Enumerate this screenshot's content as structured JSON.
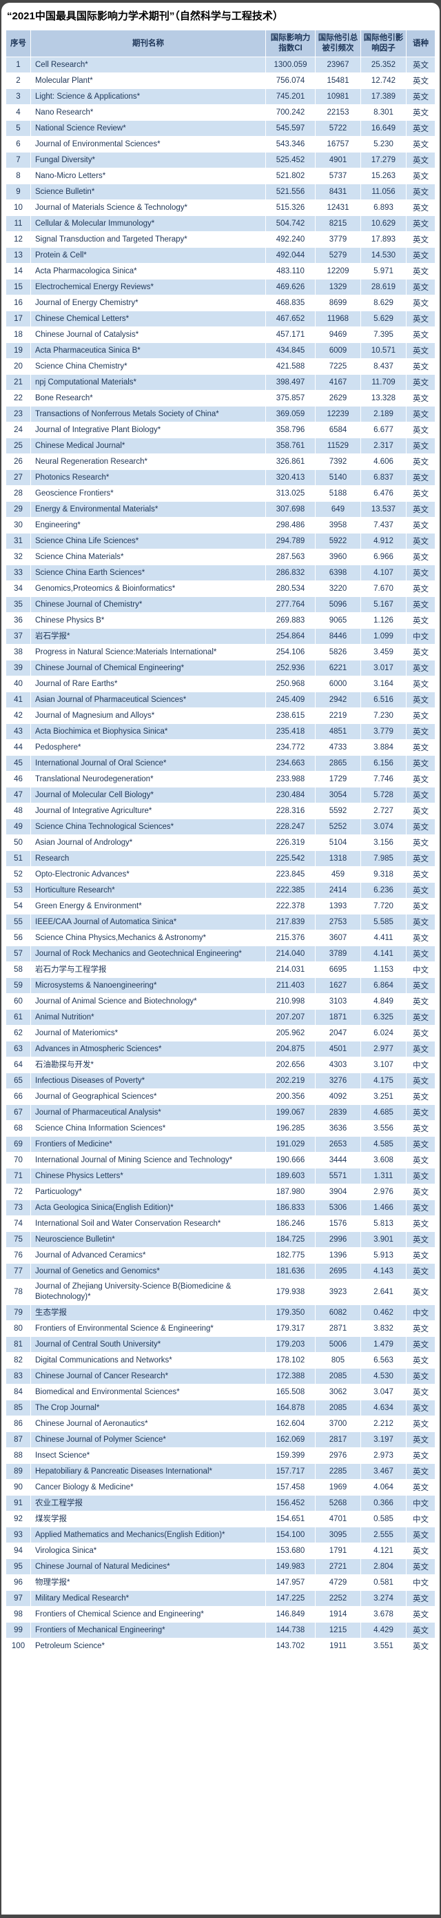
{
  "theme": {
    "page_bg": "#474747",
    "card_bg": "#ffffff",
    "header_bg": "#b8cce4",
    "row_alt_bg": "#cfe0f1",
    "row_bg": "#ffffff",
    "text_color": "#1d3557",
    "title_color": "#000000"
  },
  "chart_data": {
    "type": "table",
    "title": "“2021中国最具国际影响力学术期刊”（自然科学与工程技术）",
    "columns": [
      "序号",
      "期刊名称",
      "国际影响力指数CI",
      "国际他引总被引频次",
      "国际他引影响因子",
      "语种"
    ],
    "rows": [
      {
        "no": 1,
        "name": "Cell Research*",
        "ci": "1300.059",
        "cites": "23967",
        "impact": "25.352",
        "lang": "英文"
      },
      {
        "no": 2,
        "name": "Molecular Plant*",
        "ci": "756.074",
        "cites": "15481",
        "impact": "12.742",
        "lang": "英文"
      },
      {
        "no": 3,
        "name": "Light: Science & Applications*",
        "ci": "745.201",
        "cites": "10981",
        "impact": "17.389",
        "lang": "英文"
      },
      {
        "no": 4,
        "name": "Nano Research*",
        "ci": "700.242",
        "cites": "22153",
        "impact": "8.301",
        "lang": "英文"
      },
      {
        "no": 5,
        "name": "National Science Review*",
        "ci": "545.597",
        "cites": "5722",
        "impact": "16.649",
        "lang": "英文"
      },
      {
        "no": 6,
        "name": "Journal of Environmental Sciences*",
        "ci": "543.346",
        "cites": "16757",
        "impact": "5.230",
        "lang": "英文"
      },
      {
        "no": 7,
        "name": "Fungal Diversity*",
        "ci": "525.452",
        "cites": "4901",
        "impact": "17.279",
        "lang": "英文"
      },
      {
        "no": 8,
        "name": "Nano-Micro Letters*",
        "ci": "521.802",
        "cites": "5737",
        "impact": "15.263",
        "lang": "英文"
      },
      {
        "no": 9,
        "name": "Science Bulletin*",
        "ci": "521.556",
        "cites": "8431",
        "impact": "11.056",
        "lang": "英文"
      },
      {
        "no": 10,
        "name": "Journal of Materials Science & Technology*",
        "ci": "515.326",
        "cites": "12431",
        "impact": "6.893",
        "lang": "英文"
      },
      {
        "no": 11,
        "name": "Cellular & Molecular Immunology*",
        "ci": "504.742",
        "cites": "8215",
        "impact": "10.629",
        "lang": "英文"
      },
      {
        "no": 12,
        "name": "Signal Transduction and Targeted Therapy*",
        "ci": "492.240",
        "cites": "3779",
        "impact": "17.893",
        "lang": "英文"
      },
      {
        "no": 13,
        "name": "Protein & Cell*",
        "ci": "492.044",
        "cites": "5279",
        "impact": "14.530",
        "lang": "英文"
      },
      {
        "no": 14,
        "name": "Acta Pharmacologica Sinica*",
        "ci": "483.110",
        "cites": "12209",
        "impact": "5.971",
        "lang": "英文"
      },
      {
        "no": 15,
        "name": "Electrochemical Energy Reviews*",
        "ci": "469.626",
        "cites": "1329",
        "impact": "28.619",
        "lang": "英文"
      },
      {
        "no": 16,
        "name": "Journal of Energy Chemistry*",
        "ci": "468.835",
        "cites": "8699",
        "impact": "8.629",
        "lang": "英文"
      },
      {
        "no": 17,
        "name": "Chinese Chemical Letters*",
        "ci": "467.652",
        "cites": "11968",
        "impact": "5.629",
        "lang": "英文"
      },
      {
        "no": 18,
        "name": "Chinese Journal of Catalysis*",
        "ci": "457.171",
        "cites": "9469",
        "impact": "7.395",
        "lang": "英文"
      },
      {
        "no": 19,
        "name": "Acta Pharmaceutica Sinica B*",
        "ci": "434.845",
        "cites": "6009",
        "impact": "10.571",
        "lang": "英文"
      },
      {
        "no": 20,
        "name": "Science China Chemistry*",
        "ci": "421.588",
        "cites": "7225",
        "impact": "8.437",
        "lang": "英文"
      },
      {
        "no": 21,
        "name": "npj Computational Materials*",
        "ci": "398.497",
        "cites": "4167",
        "impact": "11.709",
        "lang": "英文"
      },
      {
        "no": 22,
        "name": "Bone Research*",
        "ci": "375.857",
        "cites": "2629",
        "impact": "13.328",
        "lang": "英文"
      },
      {
        "no": 23,
        "name": "Transactions of Nonferrous Metals Society of China*",
        "ci": "369.059",
        "cites": "12239",
        "impact": "2.189",
        "lang": "英文"
      },
      {
        "no": 24,
        "name": "Journal of Integrative Plant Biology*",
        "ci": "358.796",
        "cites": "6584",
        "impact": "6.677",
        "lang": "英文"
      },
      {
        "no": 25,
        "name": "Chinese Medical Journal*",
        "ci": "358.761",
        "cites": "11529",
        "impact": "2.317",
        "lang": "英文"
      },
      {
        "no": 26,
        "name": "Neural Regeneration Research*",
        "ci": "326.861",
        "cites": "7392",
        "impact": "4.606",
        "lang": "英文"
      },
      {
        "no": 27,
        "name": "Photonics Research*",
        "ci": "320.413",
        "cites": "5140",
        "impact": "6.837",
        "lang": "英文"
      },
      {
        "no": 28,
        "name": "Geoscience Frontiers*",
        "ci": "313.025",
        "cites": "5188",
        "impact": "6.476",
        "lang": "英文"
      },
      {
        "no": 29,
        "name": "Energy & Environmental Materials*",
        "ci": "307.698",
        "cites": "649",
        "impact": "13.537",
        "lang": "英文"
      },
      {
        "no": 30,
        "name": "Engineering*",
        "ci": "298.486",
        "cites": "3958",
        "impact": "7.437",
        "lang": "英文"
      },
      {
        "no": 31,
        "name": "Science China Life Sciences*",
        "ci": "294.789",
        "cites": "5922",
        "impact": "4.912",
        "lang": "英文"
      },
      {
        "no": 32,
        "name": "Science China Materials*",
        "ci": "287.563",
        "cites": "3960",
        "impact": "6.966",
        "lang": "英文"
      },
      {
        "no": 33,
        "name": "Science China Earth Sciences*",
        "ci": "286.832",
        "cites": "6398",
        "impact": "4.107",
        "lang": "英文"
      },
      {
        "no": 34,
        "name": "Genomics,Proteomics & Bioinformatics*",
        "ci": "280.534",
        "cites": "3220",
        "impact": "7.670",
        "lang": "英文"
      },
      {
        "no": 35,
        "name": "Chinese Journal of Chemistry*",
        "ci": "277.764",
        "cites": "5096",
        "impact": "5.167",
        "lang": "英文"
      },
      {
        "no": 36,
        "name": "Chinese Physics B*",
        "ci": "269.883",
        "cites": "9065",
        "impact": "1.126",
        "lang": "英文"
      },
      {
        "no": 37,
        "name": "岩石学报*",
        "ci": "254.864",
        "cites": "8446",
        "impact": "1.099",
        "lang": "中文"
      },
      {
        "no": 38,
        "name": "Progress in Natural Science:Materials International*",
        "ci": "254.106",
        "cites": "5826",
        "impact": "3.459",
        "lang": "英文"
      },
      {
        "no": 39,
        "name": "Chinese Journal of Chemical Engineering*",
        "ci": "252.936",
        "cites": "6221",
        "impact": "3.017",
        "lang": "英文"
      },
      {
        "no": 40,
        "name": "Journal of Rare Earths*",
        "ci": "250.968",
        "cites": "6000",
        "impact": "3.164",
        "lang": "英文"
      },
      {
        "no": 41,
        "name": "Asian Journal of Pharmaceutical Sciences*",
        "ci": "245.409",
        "cites": "2942",
        "impact": "6.516",
        "lang": "英文"
      },
      {
        "no": 42,
        "name": "Journal of Magnesium and Alloys*",
        "ci": "238.615",
        "cites": "2219",
        "impact": "7.230",
        "lang": "英文"
      },
      {
        "no": 43,
        "name": "Acta Biochimica et Biophysica Sinica*",
        "ci": "235.418",
        "cites": "4851",
        "impact": "3.779",
        "lang": "英文"
      },
      {
        "no": 44,
        "name": "Pedosphere*",
        "ci": "234.772",
        "cites": "4733",
        "impact": "3.884",
        "lang": "英文"
      },
      {
        "no": 45,
        "name": "International Journal of Oral Science*",
        "ci": "234.663",
        "cites": "2865",
        "impact": "6.156",
        "lang": "英文"
      },
      {
        "no": 46,
        "name": "Translational Neurodegeneration*",
        "ci": "233.988",
        "cites": "1729",
        "impact": "7.746",
        "lang": "英文"
      },
      {
        "no": 47,
        "name": "Journal of Molecular Cell Biology*",
        "ci": "230.484",
        "cites": "3054",
        "impact": "5.728",
        "lang": "英文"
      },
      {
        "no": 48,
        "name": "Journal of Integrative Agriculture*",
        "ci": "228.316",
        "cites": "5592",
        "impact": "2.727",
        "lang": "英文"
      },
      {
        "no": 49,
        "name": "Science China Technological Sciences*",
        "ci": "228.247",
        "cites": "5252",
        "impact": "3.074",
        "lang": "英文"
      },
      {
        "no": 50,
        "name": "Asian Journal of Andrology*",
        "ci": "226.319",
        "cites": "5104",
        "impact": "3.156",
        "lang": "英文"
      },
      {
        "no": 51,
        "name": "Research",
        "ci": "225.542",
        "cites": "1318",
        "impact": "7.985",
        "lang": "英文"
      },
      {
        "no": 52,
        "name": "Opto-Electronic Advances*",
        "ci": "223.845",
        "cites": "459",
        "impact": "9.318",
        "lang": "英文"
      },
      {
        "no": 53,
        "name": "Horticulture Research*",
        "ci": "222.385",
        "cites": "2414",
        "impact": "6.236",
        "lang": "英文"
      },
      {
        "no": 54,
        "name": "Green Energy & Environment*",
        "ci": "222.378",
        "cites": "1393",
        "impact": "7.720",
        "lang": "英文"
      },
      {
        "no": 55,
        "name": "IEEE/CAA Journal of Automatica Sinica*",
        "ci": "217.839",
        "cites": "2753",
        "impact": "5.585",
        "lang": "英文"
      },
      {
        "no": 56,
        "name": "Science China Physics,Mechanics & Astronomy*",
        "ci": "215.376",
        "cites": "3607",
        "impact": "4.411",
        "lang": "英文"
      },
      {
        "no": 57,
        "name": "Journal of Rock Mechanics and Geotechnical Engineering*",
        "ci": "214.040",
        "cites": "3789",
        "impact": "4.141",
        "lang": "英文"
      },
      {
        "no": 58,
        "name": "岩石力学与工程学报",
        "ci": "214.031",
        "cites": "6695",
        "impact": "1.153",
        "lang": "中文"
      },
      {
        "no": 59,
        "name": "Microsystems & Nanoengineering*",
        "ci": "211.403",
        "cites": "1627",
        "impact": "6.864",
        "lang": "英文"
      },
      {
        "no": 60,
        "name": "Journal of Animal Science and Biotechnology*",
        "ci": "210.998",
        "cites": "3103",
        "impact": "4.849",
        "lang": "英文"
      },
      {
        "no": 61,
        "name": "Animal Nutrition*",
        "ci": "207.207",
        "cites": "1871",
        "impact": "6.325",
        "lang": "英文"
      },
      {
        "no": 62,
        "name": "Journal of Materiomics*",
        "ci": "205.962",
        "cites": "2047",
        "impact": "6.024",
        "lang": "英文"
      },
      {
        "no": 63,
        "name": "Advances in Atmospheric Sciences*",
        "ci": "204.875",
        "cites": "4501",
        "impact": "2.977",
        "lang": "英文"
      },
      {
        "no": 64,
        "name": "石油勘探与开发*",
        "ci": "202.656",
        "cites": "4303",
        "impact": "3.107",
        "lang": "中文"
      },
      {
        "no": 65,
        "name": "Infectious Diseases of Poverty*",
        "ci": "202.219",
        "cites": "3276",
        "impact": "4.175",
        "lang": "英文"
      },
      {
        "no": 66,
        "name": "Journal of Geographical Sciences*",
        "ci": "200.356",
        "cites": "4092",
        "impact": "3.251",
        "lang": "英文"
      },
      {
        "no": 67,
        "name": "Journal of Pharmaceutical Analysis*",
        "ci": "199.067",
        "cites": "2839",
        "impact": "4.685",
        "lang": "英文"
      },
      {
        "no": 68,
        "name": "Science China Information Sciences*",
        "ci": "196.285",
        "cites": "3636",
        "impact": "3.556",
        "lang": "英文"
      },
      {
        "no": 69,
        "name": "Frontiers of Medicine*",
        "ci": "191.029",
        "cites": "2653",
        "impact": "4.585",
        "lang": "英文"
      },
      {
        "no": 70,
        "name": "International Journal of Mining Science and Technology*",
        "ci": "190.666",
        "cites": "3444",
        "impact": "3.608",
        "lang": "英文"
      },
      {
        "no": 71,
        "name": "Chinese Physics Letters*",
        "ci": "189.603",
        "cites": "5571",
        "impact": "1.311",
        "lang": "英文"
      },
      {
        "no": 72,
        "name": "Particuology*",
        "ci": "187.980",
        "cites": "3904",
        "impact": "2.976",
        "lang": "英文"
      },
      {
        "no": 73,
        "name": "Acta Geologica Sinica(English Edition)*",
        "ci": "186.833",
        "cites": "5306",
        "impact": "1.466",
        "lang": "英文"
      },
      {
        "no": 74,
        "name": "International Soil and Water Conservation Research*",
        "ci": "186.246",
        "cites": "1576",
        "impact": "5.813",
        "lang": "英文"
      },
      {
        "no": 75,
        "name": "Neuroscience Bulletin*",
        "ci": "184.725",
        "cites": "2996",
        "impact": "3.901",
        "lang": "英文"
      },
      {
        "no": 76,
        "name": "Journal of Advanced Ceramics*",
        "ci": "182.775",
        "cites": "1396",
        "impact": "5.913",
        "lang": "英文"
      },
      {
        "no": 77,
        "name": "Journal of Genetics and Genomics*",
        "ci": "181.636",
        "cites": "2695",
        "impact": "4.143",
        "lang": "英文"
      },
      {
        "no": 78,
        "name": "Journal of Zhejiang University-Science B(Biomedicine & Biotechnology)*",
        "ci": "179.938",
        "cites": "3923",
        "impact": "2.641",
        "lang": "英文"
      },
      {
        "no": 79,
        "name": "生态学报",
        "ci": "179.350",
        "cites": "6082",
        "impact": "0.462",
        "lang": "中文"
      },
      {
        "no": 80,
        "name": "Frontiers of Environmental Science & Engineering*",
        "ci": "179.317",
        "cites": "2871",
        "impact": "3.832",
        "lang": "英文"
      },
      {
        "no": 81,
        "name": "Journal of Central South University*",
        "ci": "179.203",
        "cites": "5006",
        "impact": "1.479",
        "lang": "英文"
      },
      {
        "no": 82,
        "name": "Digital Communications and Networks*",
        "ci": "178.102",
        "cites": "805",
        "impact": "6.563",
        "lang": "英文"
      },
      {
        "no": 83,
        "name": "Chinese Journal of Cancer Research*",
        "ci": "172.388",
        "cites": "2085",
        "impact": "4.530",
        "lang": "英文"
      },
      {
        "no": 84,
        "name": "Biomedical and Environmental Sciences*",
        "ci": "165.508",
        "cites": "3062",
        "impact": "3.047",
        "lang": "英文"
      },
      {
        "no": 85,
        "name": "The Crop Journal*",
        "ci": "164.878",
        "cites": "2085",
        "impact": "4.634",
        "lang": "英文"
      },
      {
        "no": 86,
        "name": "Chinese Journal of Aeronautics*",
        "ci": "162.604",
        "cites": "3700",
        "impact": "2.212",
        "lang": "英文"
      },
      {
        "no": 87,
        "name": "Chinese Journal of Polymer Science*",
        "ci": "162.069",
        "cites": "2817",
        "impact": "3.197",
        "lang": "英文"
      },
      {
        "no": 88,
        "name": "Insect Science*",
        "ci": "159.399",
        "cites": "2976",
        "impact": "2.973",
        "lang": "英文"
      },
      {
        "no": 89,
        "name": "Hepatobiliary & Pancreatic Diseases International*",
        "ci": "157.717",
        "cites": "2285",
        "impact": "3.467",
        "lang": "英文"
      },
      {
        "no": 90,
        "name": "Cancer Biology & Medicine*",
        "ci": "157.458",
        "cites": "1969",
        "impact": "4.064",
        "lang": "英文"
      },
      {
        "no": 91,
        "name": "农业工程学报",
        "ci": "156.452",
        "cites": "5268",
        "impact": "0.366",
        "lang": "中文"
      },
      {
        "no": 92,
        "name": "煤炭学报",
        "ci": "154.651",
        "cites": "4701",
        "impact": "0.585",
        "lang": "中文"
      },
      {
        "no": 93,
        "name": "Applied Mathematics and Mechanics(English Edition)*",
        "ci": "154.100",
        "cites": "3095",
        "impact": "2.555",
        "lang": "英文"
      },
      {
        "no": 94,
        "name": "Virologica Sinica*",
        "ci": "153.680",
        "cites": "1791",
        "impact": "4.121",
        "lang": "英文"
      },
      {
        "no": 95,
        "name": "Chinese Journal of Natural Medicines*",
        "ci": "149.983",
        "cites": "2721",
        "impact": "2.804",
        "lang": "英文"
      },
      {
        "no": 96,
        "name": "物理学报*",
        "ci": "147.957",
        "cites": "4729",
        "impact": "0.581",
        "lang": "中文"
      },
      {
        "no": 97,
        "name": "Military Medical Research*",
        "ci": "147.225",
        "cites": "2252",
        "impact": "3.274",
        "lang": "英文"
      },
      {
        "no": 98,
        "name": "Frontiers of Chemical Science and Engineering*",
        "ci": "146.849",
        "cites": "1914",
        "impact": "3.678",
        "lang": "英文"
      },
      {
        "no": 99,
        "name": "Frontiers of Mechanical Engineering*",
        "ci": "144.738",
        "cites": "1215",
        "impact": "4.429",
        "lang": "英文"
      },
      {
        "no": 100,
        "name": "Petroleum Science*",
        "ci": "143.702",
        "cites": "1911",
        "impact": "3.551",
        "lang": "英文"
      }
    ]
  }
}
